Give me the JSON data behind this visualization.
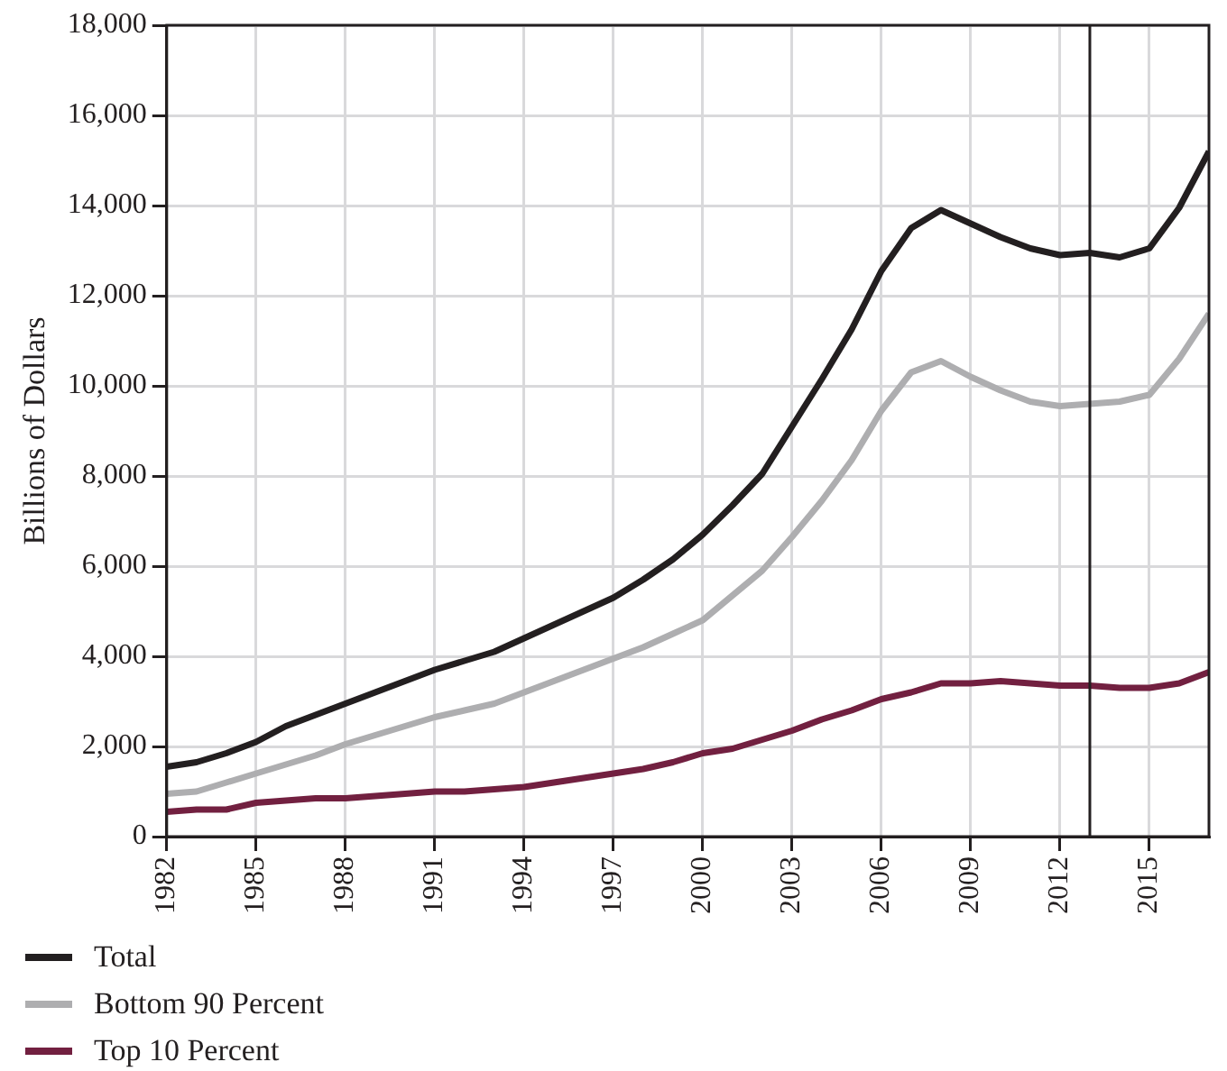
{
  "chart_data": {
    "type": "line",
    "ylabel": "Billions of Dollars",
    "x": [
      1982,
      1983,
      1984,
      1985,
      1986,
      1987,
      1988,
      1989,
      1990,
      1991,
      1992,
      1993,
      1994,
      1995,
      1996,
      1997,
      1998,
      1999,
      2000,
      2001,
      2002,
      2003,
      2004,
      2005,
      2006,
      2007,
      2008,
      2009,
      2010,
      2011,
      2012,
      2013,
      2014,
      2015,
      2016,
      2017
    ],
    "xlim": [
      1982,
      2017
    ],
    "xticks": [
      1982,
      1985,
      1988,
      1991,
      1994,
      1997,
      2000,
      2003,
      2006,
      2009,
      2012,
      2015
    ],
    "ylim": [
      0,
      18000
    ],
    "yticks": [
      {
        "value": 0,
        "label": "0"
      },
      {
        "value": 2000,
        "label": "2,000"
      },
      {
        "value": 4000,
        "label": "4,000"
      },
      {
        "value": 6000,
        "label": "6,000"
      },
      {
        "value": 8000,
        "label": "8,000"
      },
      {
        "value": 10000,
        "label": "10,000"
      },
      {
        "value": 12000,
        "label": "12,000"
      },
      {
        "value": 14000,
        "label": "14,000"
      },
      {
        "value": 16000,
        "label": "16,000"
      },
      {
        "value": 18000,
        "label": "18,000"
      }
    ],
    "grid": true,
    "legend": "bottom",
    "marker": "none",
    "line_style": "solid",
    "ref_lines": [
      {
        "axis": "x",
        "value": 2013,
        "color": "#231f20"
      }
    ],
    "series": [
      {
        "name": "Total",
        "color": "#231f20",
        "values": [
          1550,
          1650,
          1850,
          2100,
          2450,
          2700,
          2950,
          3200,
          3450,
          3700,
          3900,
          4100,
          4400,
          4700,
          5000,
          5300,
          5700,
          6150,
          6700,
          7350,
          8050,
          9100,
          10150,
          11250,
          12550,
          13500,
          13900,
          13600,
          13300,
          13050,
          12900,
          12950,
          12850,
          13050,
          13950,
          15200
        ]
      },
      {
        "name": "Bottom 90 Percent",
        "color": "#aeaeb0",
        "values": [
          950,
          1000,
          1200,
          1400,
          1600,
          1800,
          2050,
          2250,
          2450,
          2650,
          2800,
          2950,
          3200,
          3450,
          3700,
          3950,
          4200,
          4500,
          4800,
          5350,
          5900,
          6650,
          7450,
          8350,
          9450,
          10300,
          10550,
          10200,
          9900,
          9650,
          9550,
          9600,
          9650,
          9800,
          10600,
          11600
        ]
      },
      {
        "name": "Top 10 Percent",
        "color": "#722040",
        "values": [
          550,
          600,
          600,
          750,
          800,
          850,
          850,
          900,
          950,
          1000,
          1000,
          1050,
          1100,
          1200,
          1300,
          1400,
          1500,
          1650,
          1850,
          1950,
          2150,
          2350,
          2600,
          2800,
          3050,
          3200,
          3400,
          3400,
          3450,
          3400,
          3350,
          3350,
          3300,
          3300,
          3400,
          3650
        ]
      }
    ]
  }
}
